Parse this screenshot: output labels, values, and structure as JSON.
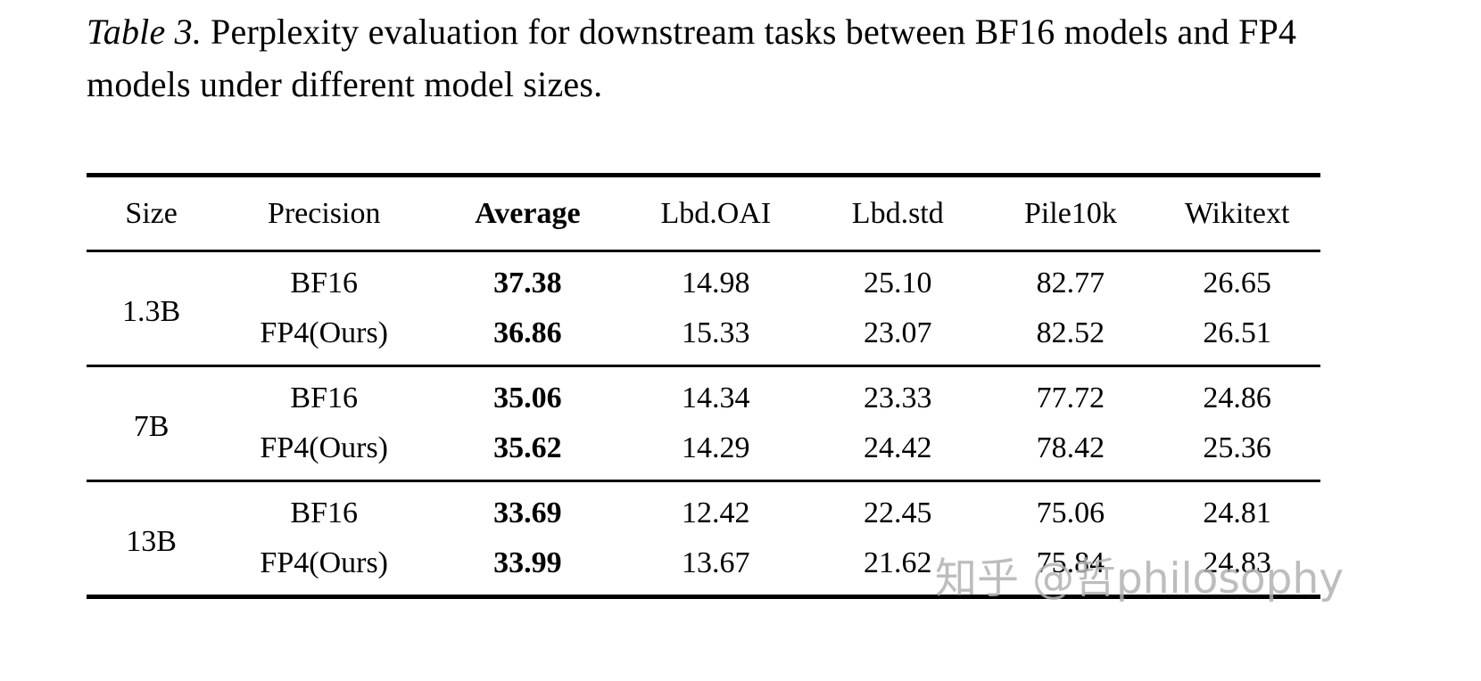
{
  "caption": {
    "label": "Table 3.",
    "text": "Perplexity evaluation for downstream tasks between BF16 models and FP4 models under different model sizes."
  },
  "table": {
    "headers": [
      "Size",
      "Precision",
      "Average",
      "Lbd.OAI",
      "Lbd.std",
      "Pile10k",
      "Wikitext"
    ],
    "groups": [
      {
        "size": "1.3B",
        "rows": [
          {
            "precision": "BF16",
            "average": "37.38",
            "lbd_oai": "14.98",
            "lbd_std": "25.10",
            "pile10k": "82.77",
            "wikitext": "26.65"
          },
          {
            "precision": "FP4(Ours)",
            "average": "36.86",
            "lbd_oai": "15.33",
            "lbd_std": "23.07",
            "pile10k": "82.52",
            "wikitext": "26.51"
          }
        ]
      },
      {
        "size": "7B",
        "rows": [
          {
            "precision": "BF16",
            "average": "35.06",
            "lbd_oai": "14.34",
            "lbd_std": "23.33",
            "pile10k": "77.72",
            "wikitext": "24.86"
          },
          {
            "precision": "FP4(Ours)",
            "average": "35.62",
            "lbd_oai": "14.29",
            "lbd_std": "24.42",
            "pile10k": "78.42",
            "wikitext": "25.36"
          }
        ]
      },
      {
        "size": "13B",
        "rows": [
          {
            "precision": "BF16",
            "average": "33.69",
            "lbd_oai": "12.42",
            "lbd_std": "22.45",
            "pile10k": "75.06",
            "wikitext": "24.81"
          },
          {
            "precision": "FP4(Ours)",
            "average": "33.99",
            "lbd_oai": "13.67",
            "lbd_std": "21.62",
            "pile10k": "75.84",
            "wikitext": "24.83"
          }
        ]
      }
    ]
  },
  "watermark": {
    "text": "知乎 @哲philosophy",
    "color": "#b2b2b2"
  }
}
